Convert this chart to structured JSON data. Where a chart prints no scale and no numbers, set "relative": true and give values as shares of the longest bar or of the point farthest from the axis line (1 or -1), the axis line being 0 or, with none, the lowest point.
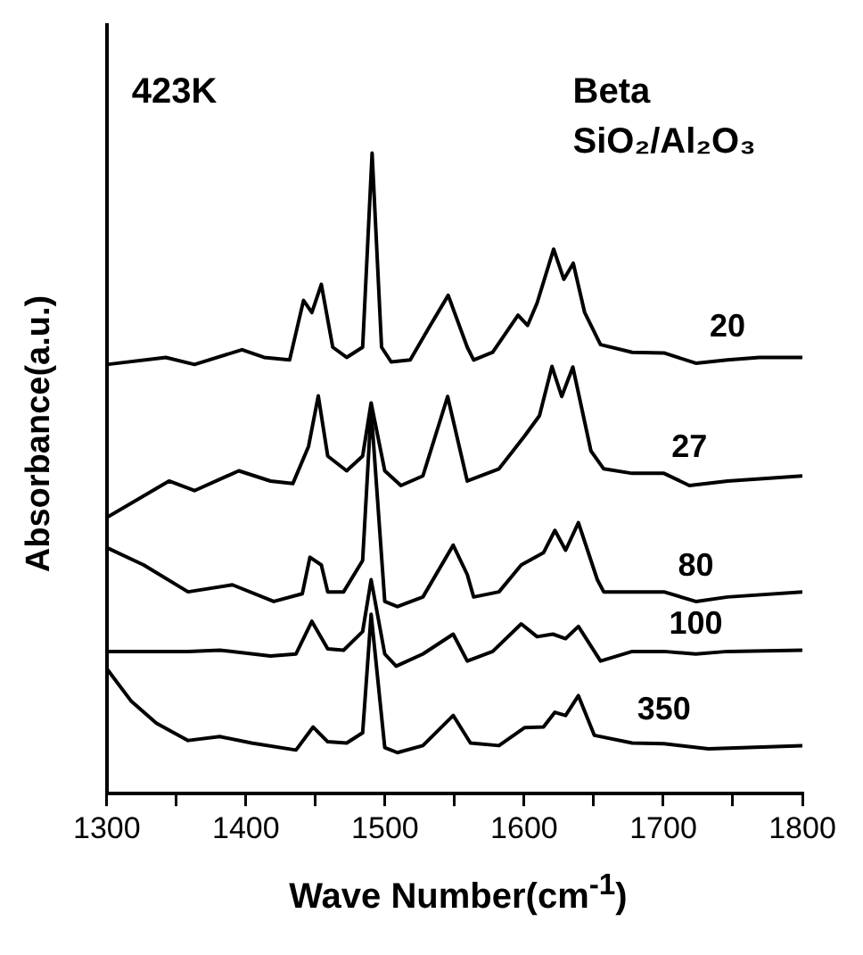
{
  "chart_data": {
    "type": "line",
    "relative": true,
    "xlabel": "Wave Number(cm$^{-1}$)",
    "ylabel": "Absorbance(a.u.)",
    "xlim": [
      1300,
      1800
    ],
    "xticks": [
      1300,
      {
        "value": 1350,
        "label": null
      },
      1400,
      {
        "value": 1450,
        "label": null
      },
      1500,
      {
        "value": 1550,
        "label": null
      },
      1600,
      {
        "value": 1650,
        "label": null
      },
      1700,
      {
        "value": 1750,
        "label": null
      },
      1800
    ],
    "annotations": [
      "423K",
      "Beta",
      "SiO₂/Al₂O₃"
    ],
    "marker": "none",
    "line_style": "solid",
    "series": [
      {
        "name": "20",
        "color": "#000000",
        "x": [
          1300,
          1342.4,
          1363,
          1397.2,
          1413.1,
          1431.4,
          1441.4,
          1447.4,
          1454.2,
          1462.4,
          1472.4,
          1483.9,
          1490.7,
          1497.5,
          1504.4,
          1518.1,
          1531.7,
          1545.4,
          1559.1,
          1563.7,
          1577.4,
          1595.6,
          1602.5,
          1609.3,
          1621.2,
          1628.5,
          1635.3,
          1643.5,
          1654.9,
          1677.7,
          1700.5,
          1723.4,
          1746.2,
          1769,
          1800
        ],
        "values": [
          0.67,
          0.681,
          0.67,
          0.693,
          0.681,
          0.677,
          0.77,
          0.751,
          0.795,
          0.697,
          0.681,
          0.697,
          1.0,
          0.697,
          0.674,
          0.677,
          0.728,
          0.778,
          0.697,
          0.677,
          0.689,
          0.747,
          0.731,
          0.766,
          0.85,
          0.803,
          0.828,
          0.751,
          0.701,
          0.689,
          0.688,
          0.672,
          0.677,
          0.681,
          0.681
        ]
      },
      {
        "name": "27",
        "color": "#000000",
        "x": [
          1300,
          1344.7,
          1363,
          1394.9,
          1417.7,
          1433.7,
          1445,
          1452,
          1458.8,
          1472.4,
          1483.9,
          1490,
          1499.8,
          1511.4,
          1527.2,
          1545,
          1559.1,
          1581.9,
          1600.2,
          1611,
          1620,
          1627,
          1635,
          1648,
          1657.2,
          1677.7,
          1700.5,
          1718.8,
          1746.2,
          1800
        ],
        "values": [
          0.431,
          0.488,
          0.473,
          0.504,
          0.488,
          0.484,
          0.542,
          0.621,
          0.527,
          0.504,
          0.527,
          0.61,
          0.504,
          0.481,
          0.496,
          0.62,
          0.488,
          0.507,
          0.558,
          0.59,
          0.667,
          0.62,
          0.666,
          0.535,
          0.507,
          0.5,
          0.5,
          0.481,
          0.488,
          0.496
        ]
      },
      {
        "name": "80",
        "color": "#000000",
        "x": [
          1300,
          1326.5,
          1358.4,
          1390.3,
          1420,
          1440.5,
          1446,
          1454.2,
          1458.8,
          1470.2,
          1483.9,
          1490,
          1499.8,
          1508.9,
          1527.2,
          1549,
          1559.1,
          1563.7,
          1581.9,
          1597.9,
          1613.9,
          1622.1,
          1629.8,
          1639,
          1652.6,
          1657.2,
          1677.7,
          1700.5,
          1723.4,
          1746.2,
          1800
        ],
        "values": [
          0.384,
          0.357,
          0.315,
          0.326,
          0.3,
          0.312,
          0.369,
          0.357,
          0.315,
          0.315,
          0.364,
          0.6,
          0.3,
          0.292,
          0.307,
          0.388,
          0.342,
          0.307,
          0.315,
          0.357,
          0.376,
          0.411,
          0.38,
          0.423,
          0.334,
          0.315,
          0.315,
          0.315,
          0.3,
          0.307,
          0.315
        ]
      },
      {
        "name": "100",
        "color": "#000000",
        "x": [
          1300,
          1358.4,
          1381.2,
          1417.7,
          1436,
          1447.4,
          1458.8,
          1470.2,
          1483.9,
          1490,
          1499.8,
          1508,
          1527.2,
          1549,
          1559.1,
          1577.4,
          1597.9,
          1609.3,
          1620.7,
          1629.8,
          1639,
          1654.9,
          1677.7,
          1700.5,
          1723.4,
          1746.2,
          1800
        ],
        "values": [
          0.222,
          0.222,
          0.224,
          0.215,
          0.218,
          0.269,
          0.226,
          0.224,
          0.253,
          0.334,
          0.218,
          0.199,
          0.218,
          0.249,
          0.207,
          0.222,
          0.265,
          0.245,
          0.249,
          0.242,
          0.261,
          0.207,
          0.222,
          0.222,
          0.218,
          0.222,
          0.224
        ]
      },
      {
        "name": "350",
        "color": "#000000",
        "x": [
          1300,
          1317.3,
          1335.6,
          1358.4,
          1381.2,
          1404.1,
          1436,
          1448.3,
          1458.8,
          1472.4,
          1483.9,
          1490,
          1499.8,
          1508.9,
          1527.2,
          1549,
          1561.4,
          1581.9,
          1600.2,
          1613.9,
          1622.1,
          1629.8,
          1639,
          1650.5,
          1677.7,
          1700.5,
          1732.5,
          1800
        ],
        "values": [
          0.195,
          0.145,
          0.11,
          0.083,
          0.089,
          0.079,
          0.068,
          0.104,
          0.081,
          0.079,
          0.095,
          0.28,
          0.072,
          0.064,
          0.075,
          0.122,
          0.079,
          0.075,
          0.103,
          0.104,
          0.127,
          0.122,
          0.153,
          0.091,
          0.079,
          0.078,
          0.07,
          0.075
        ]
      }
    ]
  }
}
